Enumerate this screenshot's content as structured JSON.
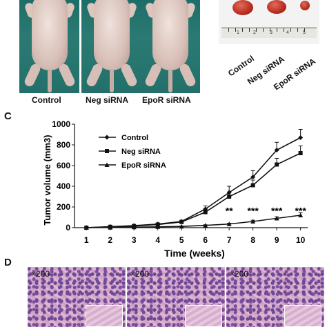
{
  "panel_a": {
    "labels": [
      "Control",
      "Neg siRNA",
      "EpoR siRNA"
    ]
  },
  "panel_b": {
    "labels": [
      "Control",
      "Neg siRNA",
      "EpoR siRNA"
    ],
    "ruler_numbers": [
      "1",
      "2",
      "3",
      "4",
      "5"
    ]
  },
  "panel_c": {
    "letter": "C"
  },
  "panel_d": {
    "letter": "D",
    "magnification": "×200"
  },
  "chart_data": {
    "type": "line",
    "title": "",
    "xlabel": "Time (weeks)",
    "ylabel": "Tumor volume (mm3)",
    "x": [
      1,
      2,
      3,
      4,
      5,
      6,
      7,
      8,
      9,
      10
    ],
    "xlim": [
      0.5,
      10.3
    ],
    "ylim": [
      0,
      1000
    ],
    "yticks": [
      0,
      200,
      400,
      600,
      800,
      1000
    ],
    "legend_placement": "top-left",
    "grid": false,
    "series": [
      {
        "name": "Control",
        "marker": "diamond",
        "values": [
          0,
          10,
          20,
          35,
          60,
          180,
          340,
          490,
          750,
          870
        ],
        "errors": [
          0,
          3,
          5,
          8,
          12,
          30,
          60,
          60,
          75,
          80
        ]
      },
      {
        "name": "Neg siRNA",
        "marker": "square",
        "values": [
          0,
          8,
          15,
          30,
          55,
          150,
          300,
          410,
          610,
          720
        ],
        "errors": [
          0,
          3,
          5,
          7,
          10,
          25,
          40,
          50,
          60,
          70
        ]
      },
      {
        "name": "EpoR siRNA",
        "marker": "triangle",
        "values": [
          0,
          2,
          5,
          8,
          12,
          22,
          35,
          60,
          90,
          120
        ],
        "errors": [
          0,
          1,
          2,
          3,
          4,
          6,
          8,
          12,
          15,
          25
        ]
      }
    ],
    "annotations": [
      {
        "x": 7,
        "text": "**"
      },
      {
        "x": 8,
        "text": "***"
      },
      {
        "x": 9,
        "text": "***"
      },
      {
        "x": 10,
        "text": "***"
      }
    ]
  }
}
